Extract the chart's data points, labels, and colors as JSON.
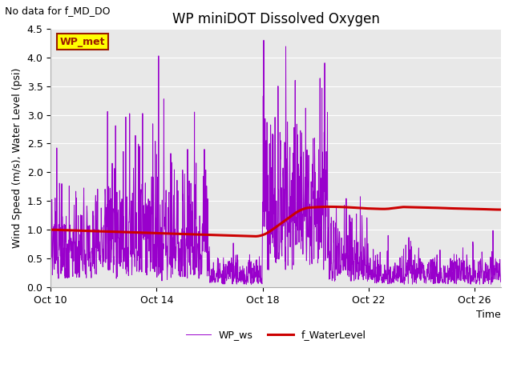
{
  "title": "WP miniDOT Dissolved Oxygen",
  "subtitle": "No data for f_MD_DO",
  "xlabel": "Time",
  "ylabel": "Wind Speed (m/s), Water Level (psi)",
  "ylim": [
    0.0,
    4.5
  ],
  "yticks": [
    0.0,
    0.5,
    1.0,
    1.5,
    2.0,
    2.5,
    3.0,
    3.5,
    4.0,
    4.5
  ],
  "xtick_days": [
    10,
    14,
    18,
    22,
    26
  ],
  "xtick_labels": [
    "Oct 10",
    "Oct 14",
    "Oct 18",
    "Oct 22",
    "Oct 26"
  ],
  "plot_bg_color": "#e8e8e8",
  "wp_ws_color": "#9900cc",
  "f_waterlevel_color": "#cc0000",
  "legend_label_ws": "WP_ws",
  "legend_label_wl": "f_WaterLevel",
  "annotation_box_label": "WP_met",
  "annotation_box_facecolor": "#ffff00",
  "annotation_box_edgecolor": "#9b1a00",
  "annotation_box_textcolor": "#9b1a00",
  "grid_color": "#ffffff",
  "title_fontsize": 12,
  "axis_fontsize": 9,
  "legend_fontsize": 9
}
